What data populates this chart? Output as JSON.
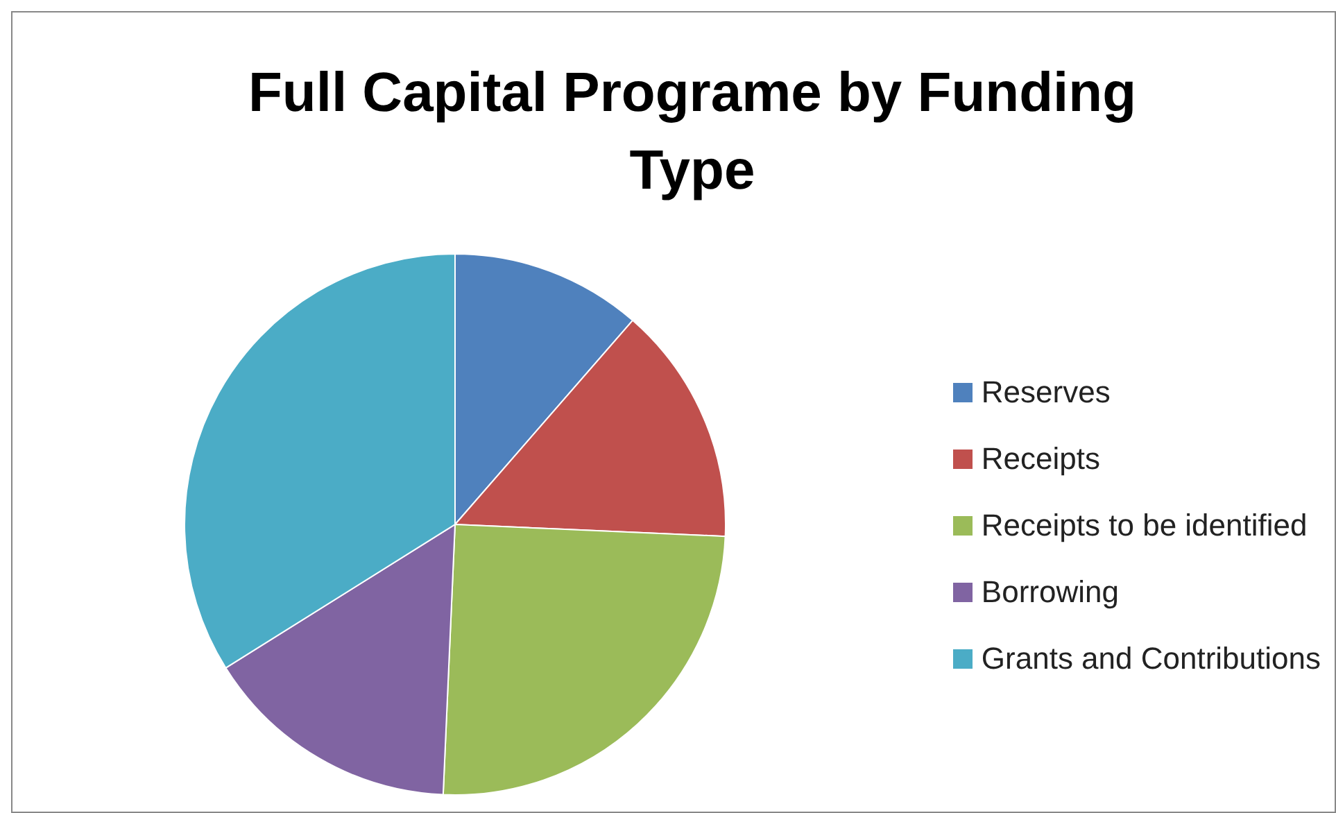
{
  "chart_data": {
    "type": "pie",
    "title": "Full Capital Programe by Funding Type",
    "categories": [
      "Reserves",
      "Receipts",
      "Receipts to be identified",
      "Borrowing",
      "Grants and Contributions"
    ],
    "values": [
      11.4,
      14.3,
      25.0,
      15.4,
      33.9
    ],
    "colors": [
      "#4f81bd",
      "#c0504d",
      "#9bbb59",
      "#8064a2",
      "#4bacc6"
    ],
    "legend": "right"
  }
}
